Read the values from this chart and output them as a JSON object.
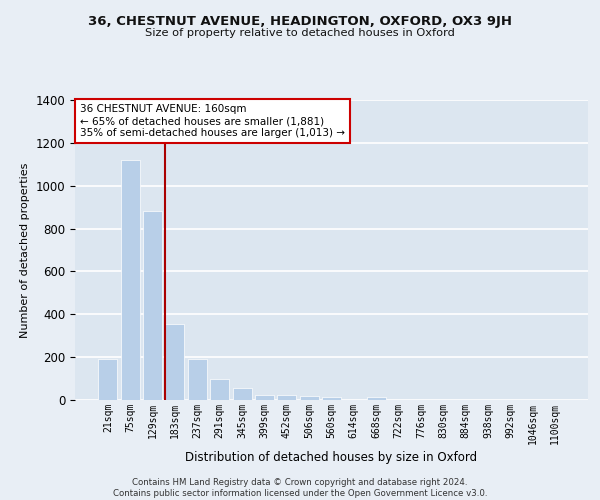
{
  "title1": "36, CHESTNUT AVENUE, HEADINGTON, OXFORD, OX3 9JH",
  "title2": "Size of property relative to detached houses in Oxford",
  "xlabel": "Distribution of detached houses by size in Oxford",
  "ylabel": "Number of detached properties",
  "categories": [
    "21sqm",
    "75sqm",
    "129sqm",
    "183sqm",
    "237sqm",
    "291sqm",
    "345sqm",
    "399sqm",
    "452sqm",
    "506sqm",
    "560sqm",
    "614sqm",
    "668sqm",
    "722sqm",
    "776sqm",
    "830sqm",
    "884sqm",
    "938sqm",
    "992sqm",
    "1046sqm",
    "1100sqm"
  ],
  "values": [
    190,
    1120,
    880,
    355,
    190,
    100,
    57,
    25,
    22,
    18,
    12,
    0,
    12,
    0,
    0,
    0,
    0,
    0,
    0,
    0,
    0
  ],
  "bar_color": "#b8cfe8",
  "vline_color": "#aa0000",
  "annotation_text": "36 CHESTNUT AVENUE: 160sqm\n← 65% of detached houses are smaller (1,881)\n35% of semi-detached houses are larger (1,013) →",
  "annotation_box_color": "#ffffff",
  "annotation_box_edge": "#cc0000",
  "ylim": [
    0,
    1400
  ],
  "yticks": [
    0,
    200,
    400,
    600,
    800,
    1000,
    1200,
    1400
  ],
  "background_color": "#dce6f0",
  "grid_color": "#ffffff",
  "fig_background": "#e8eef5",
  "footer": "Contains HM Land Registry data © Crown copyright and database right 2024.\nContains public sector information licensed under the Open Government Licence v3.0."
}
